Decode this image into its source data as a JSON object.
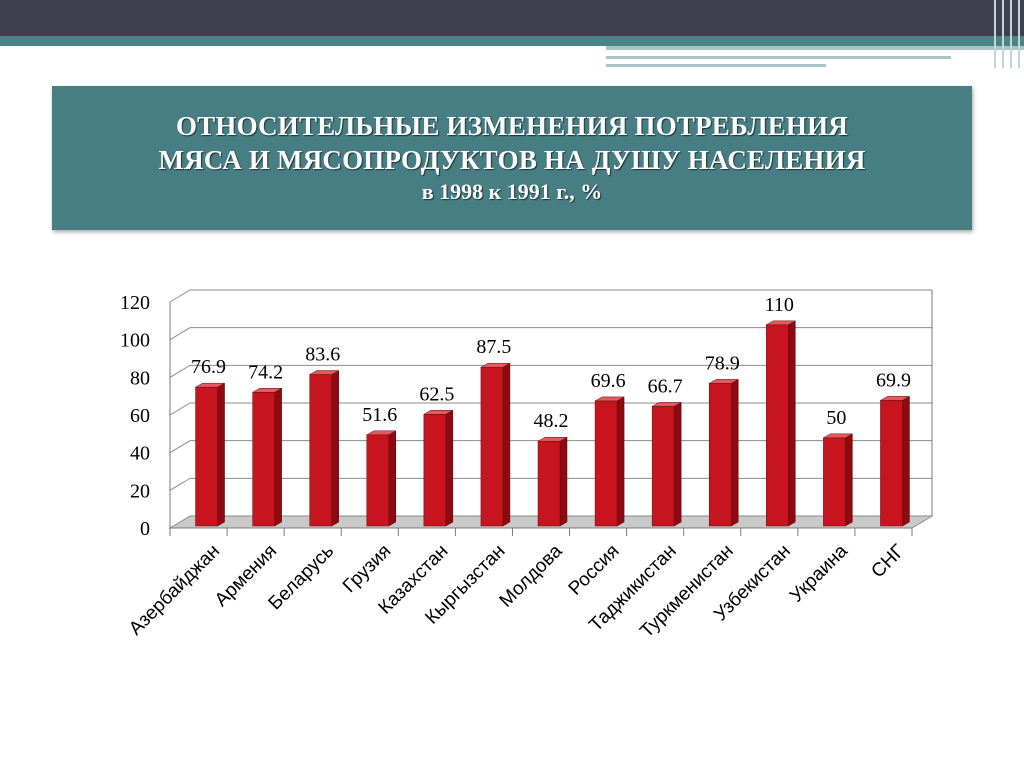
{
  "slide": {
    "title_line1": "ОТНОСИТЕЛЬНЫЕ ИЗМЕНЕНИЯ ПОТРЕБЛЕНИЯ",
    "title_line2": "МЯСА И МЯСОПРОДУКТОВ НА ДУШУ НАСЕЛЕНИЯ",
    "subtitle": "в 1998 к 1991 г., %"
  },
  "colors": {
    "bar_front": "#c8141e",
    "bar_side": "#8c0a10",
    "bar_top": "#e05a5f",
    "header_bg": "#477e83"
  },
  "chart_data": {
    "type": "bar",
    "categories": [
      "Азербайджан",
      "Армения",
      "Беларусь",
      "Грузия",
      "Казахстан",
      "Кыргызстан",
      "Молдова",
      "Россия",
      "Таджикистан",
      "Туркменистан",
      "Узбекистан",
      "Украина",
      "СНГ"
    ],
    "values": [
      76.9,
      74.2,
      83.6,
      51.6,
      62.5,
      87.5,
      48.2,
      69.6,
      66.7,
      78.9,
      110,
      50,
      69.9
    ],
    "value_labels": [
      "76.9",
      "74.2",
      "83.6",
      "51.6",
      "62.5",
      "87.5",
      "48.2",
      "69.6",
      "66.7",
      "78.9",
      "110",
      "50",
      "69.9"
    ],
    "yticks": [
      "0",
      "20",
      "40",
      "60",
      "80",
      "100",
      "120"
    ],
    "ylim": [
      0,
      120
    ],
    "grid": true,
    "legend": "none",
    "style": "3d"
  }
}
